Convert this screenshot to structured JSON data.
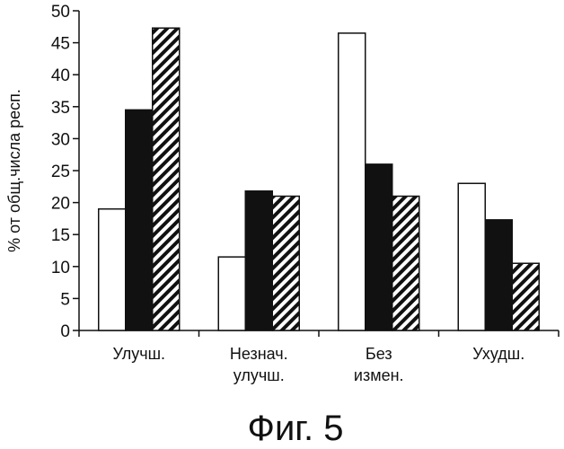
{
  "chart_data": {
    "type": "bar",
    "categories": [
      [
        "Улучш."
      ],
      [
        "Незнач.",
        "улучш."
      ],
      [
        "Без",
        "измен."
      ],
      [
        "Ухудш."
      ]
    ],
    "series": [
      {
        "style": "white",
        "values": [
          19,
          11.5,
          46.5,
          23
        ]
      },
      {
        "style": "black",
        "values": [
          34.5,
          21.8,
          26,
          17.3
        ]
      },
      {
        "style": "hatched",
        "values": [
          47.3,
          21,
          21,
          10.5
        ]
      }
    ],
    "ylabel": "% от общ.числа респ.",
    "ylim": [
      0,
      50
    ],
    "yticks": [
      0,
      5,
      10,
      15,
      20,
      25,
      30,
      35,
      40,
      45,
      50
    ],
    "grid": false,
    "legend": "none"
  },
  "caption": "Фиг. 5",
  "colors": {
    "bar_fill_white": "#ffffff",
    "bar_fill_black": "#111111",
    "hatch": "#111111",
    "axis": "#111111"
  }
}
